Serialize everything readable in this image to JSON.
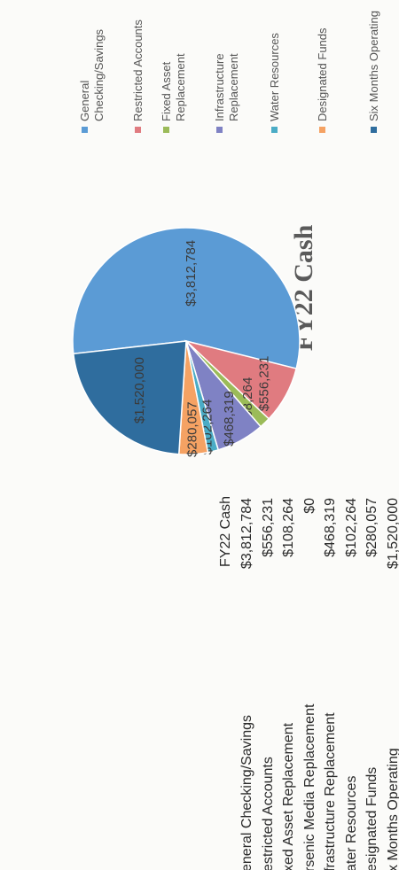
{
  "chart_data": {
    "type": "pie",
    "title": "FY22 Cash",
    "categories": [
      "General Checking/Savings",
      "Restricted Accounts",
      "Fixed Asset Replacement",
      "Infrastructure Replacement",
      "Water Resources",
      "Designated Funds",
      "Six Months Operating"
    ],
    "values": [
      3812784,
      556231,
      108264,
      468319,
      102264,
      280057,
      1520000
    ],
    "value_labels": [
      "$3,812,784",
      "$556,231",
      "$108,264",
      "$468,319",
      "$102,264",
      "$280,057",
      "$1,520,000"
    ],
    "colors": [
      "#5b9bd5",
      "#e07b80",
      "#9bbb59",
      "#7f82c4",
      "#4bacc6",
      "#f5a263",
      "#2f6d9e"
    ],
    "legend": "right"
  },
  "table": {
    "header": "FY22 Cash",
    "rows": [
      [
        "eneral Checking/Savings",
        "$3,812,784"
      ],
      [
        "estricted Accounts",
        "$556,231"
      ],
      [
        "xed Asset Replacement",
        "$108,264"
      ],
      [
        "rsenic Media Replacement",
        "$0"
      ],
      [
        "frastructure Replacement",
        "$468,319"
      ],
      [
        "ater Resources",
        "$102,264"
      ],
      [
        "esignated Funds",
        "$280,057"
      ],
      [
        "x Months Operating",
        "$1,520,000"
      ]
    ]
  }
}
